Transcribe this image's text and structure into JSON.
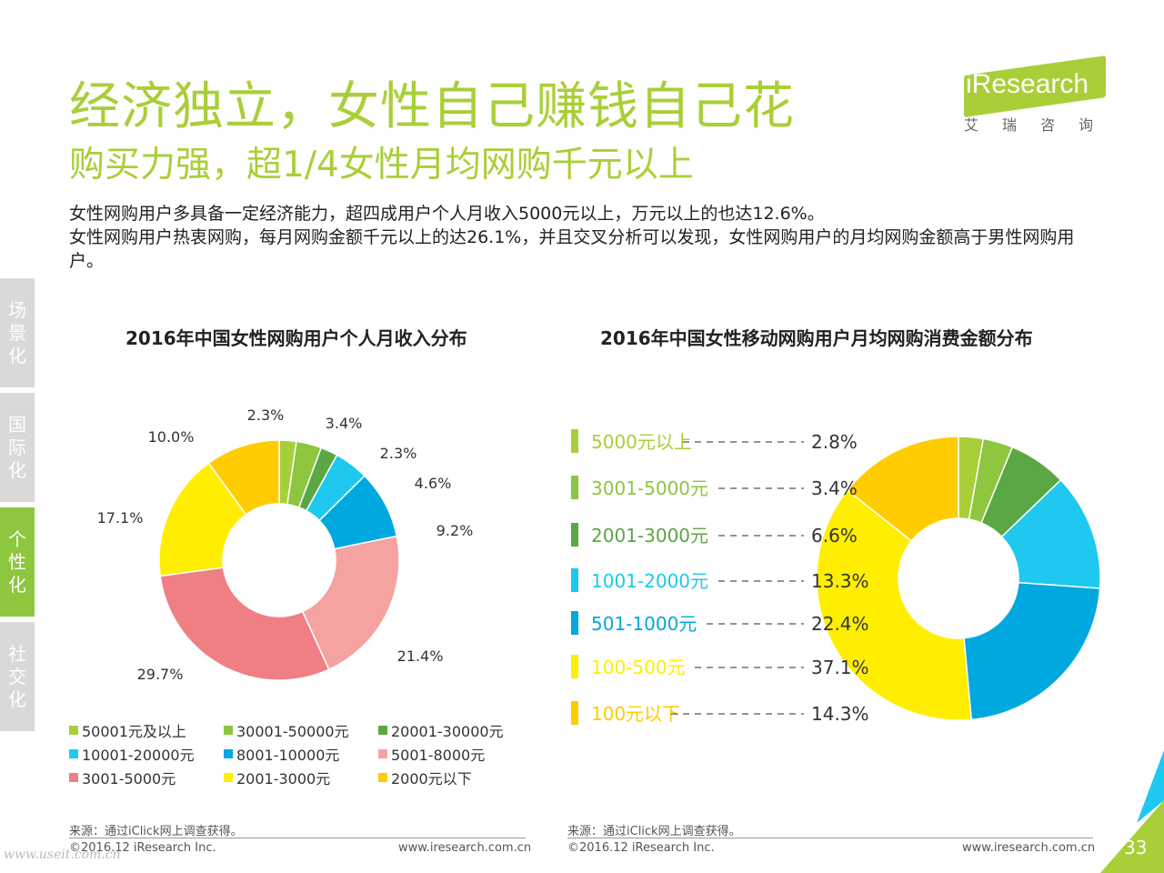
{
  "header": {
    "title": "经济独立，女性自己赚钱自己花",
    "subtitle": "购买力强，超1/4女性月均网购千元以上",
    "logo_text": "iResearch",
    "logo_cn": "艾瑞咨询"
  },
  "description": [
    "女性网购用户多具备一定经济能力，超四成用户个人月收入5000元以上，万元以上的也达12.6%。",
    "女性网购用户热衷网购，每月网购金额千元以上的达26.1%，并且交叉分析可以发现，女性网购用户的月均网购金额高于男性网购用户。"
  ],
  "side_tabs": [
    {
      "label": "场景化",
      "active": false
    },
    {
      "label": "国际化",
      "active": false
    },
    {
      "label": "个性化",
      "active": true
    },
    {
      "label": "社交化",
      "active": false
    }
  ],
  "chart_data": [
    {
      "type": "pie",
      "title": "2016年中国女性网购用户个人月收入分布",
      "categories": [
        "50001元及以上",
        "30001-50000元",
        "20001-30000元",
        "10001-20000元",
        "8001-10000元",
        "5001-8000元",
        "3001-5000元",
        "2001-3000元",
        "2000元以下"
      ],
      "values": [
        2.3,
        3.4,
        2.3,
        4.6,
        9.2,
        21.4,
        29.7,
        17.1,
        10.0
      ],
      "labels": [
        "2.3%",
        "3.4%",
        "2.3%",
        "4.6%",
        "9.2%",
        "21.4%",
        "29.7%",
        "17.1%",
        "10.0%"
      ],
      "colors": [
        "#a9cf38",
        "#8dc63f",
        "#5aa744",
        "#1fc8ef",
        "#00a8e0",
        "#f5a3a0",
        "#f07f84",
        "#ffee00",
        "#ffcc00"
      ],
      "legend": "bottom"
    },
    {
      "type": "pie",
      "title": "2016年中国女性移动网购用户月均网购消费金额分布",
      "categories": [
        "5000元以上",
        "3001-5000元",
        "2001-3000元",
        "1001-2000元",
        "501-1000元",
        "100-500元",
        "100元以下"
      ],
      "values": [
        2.8,
        3.4,
        6.6,
        13.3,
        22.4,
        37.1,
        14.3
      ],
      "labels": [
        "2.8%",
        "3.4%",
        "6.6%",
        "13.3%",
        "22.4%",
        "37.1%",
        "14.3%"
      ],
      "colors": [
        "#a9cf38",
        "#8dc63f",
        "#5aa744",
        "#1fc8ef",
        "#00a8e0",
        "#ffee00",
        "#ffcc00"
      ],
      "legend": "left"
    }
  ],
  "footer": {
    "source": "来源：通过iClick网上调查获得。",
    "copyright": "©2016.12 iResearch Inc.",
    "url": "www.iresearch.com.cn",
    "page": "33",
    "watermark": "www.useit.com.cn"
  }
}
